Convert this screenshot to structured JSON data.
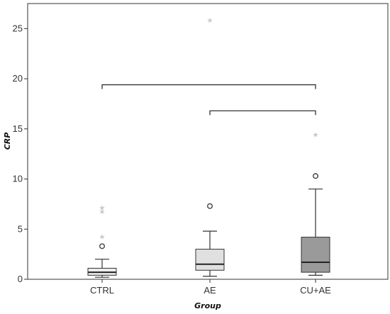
{
  "chart_data": {
    "type": "box",
    "xlabel": "Group",
    "ylabel": "CRP",
    "ylim": [
      0,
      27.5
    ],
    "yticks": [
      0,
      5,
      10,
      15,
      20,
      25
    ],
    "grid": false,
    "categories": [
      "CTRL",
      "AE",
      "CU+AE"
    ],
    "boxes": [
      {
        "category": "CTRL",
        "whisker_low": 0.2,
        "q1": 0.4,
        "median": 0.7,
        "q3": 1.1,
        "whisker_high": 2.0,
        "fill": "#ececec",
        "outliers": [
          3.3
        ],
        "extremes": [
          4.2,
          6.7,
          7.1
        ]
      },
      {
        "category": "AE",
        "whisker_low": 0.3,
        "q1": 0.9,
        "median": 1.5,
        "q3": 3.0,
        "whisker_high": 4.8,
        "fill": "#e0e0e0",
        "outliers": [
          7.3
        ],
        "extremes": [
          25.8
        ]
      },
      {
        "category": "CU+AE",
        "whisker_low": 0.4,
        "q1": 0.7,
        "median": 1.7,
        "q3": 4.2,
        "whisker_high": 9.0,
        "fill": "#9a9a9a",
        "outliers": [
          10.3
        ],
        "extremes": [
          14.4
        ]
      }
    ],
    "brackets": [
      {
        "from": "CTRL",
        "to": "CU+AE",
        "y": 19.4
      },
      {
        "from": "AE",
        "to": "CU+AE",
        "y": 16.8
      }
    ]
  }
}
